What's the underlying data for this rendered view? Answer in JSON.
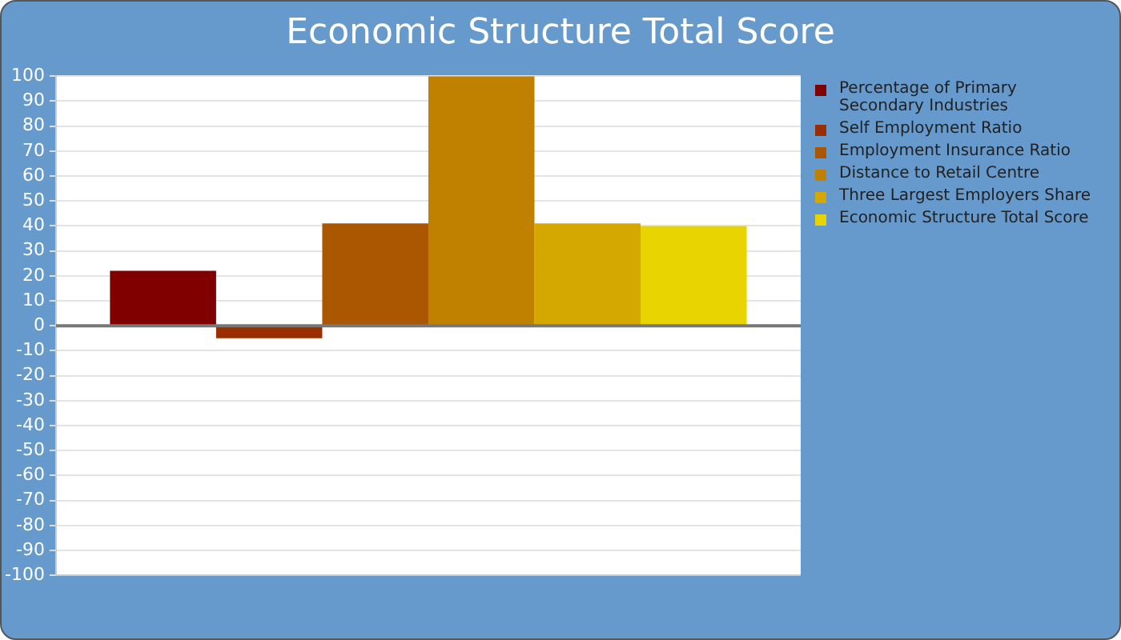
{
  "chart_data": {
    "type": "bar",
    "title": "Economic Structure Total Score",
    "categories": [
      null
    ],
    "series": [
      {
        "name": "Percentage of Primary Secondary Industries",
        "color": "#800000",
        "values": [
          22
        ]
      },
      {
        "name": "Self Employment Ratio",
        "color": "#992e00",
        "values": [
          -5
        ]
      },
      {
        "name": "Employment Insurance Ratio",
        "color": "#ab5600",
        "values": [
          41
        ]
      },
      {
        "name": "Distance to Retail Centre",
        "color": "#c08000",
        "values": [
          100
        ]
      },
      {
        "name": "Three Largest Employers Share",
        "color": "#d4a800",
        "values": [
          41
        ]
      },
      {
        "name": "Economic Structure Total Score",
        "color": "#e8d400",
        "values": [
          40
        ]
      }
    ],
    "ylim": [
      -100,
      100
    ],
    "yticks": [
      -100,
      -90,
      -80,
      -70,
      -60,
      -50,
      -40,
      -30,
      -20,
      -10,
      0,
      10,
      20,
      30,
      40,
      50,
      60,
      70,
      80,
      90,
      100
    ],
    "grid": "y",
    "legend": "right"
  }
}
